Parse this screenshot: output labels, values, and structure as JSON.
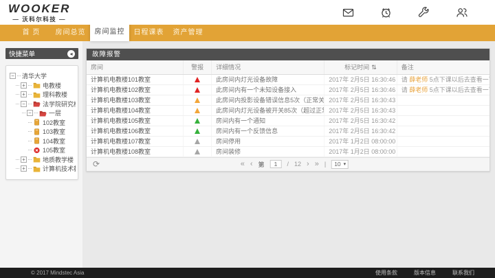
{
  "brand": {
    "logo": "WOOKER",
    "subtitle": "— 沃科尔科技 —"
  },
  "header": {
    "icons": [
      {
        "name": "mail-icon"
      },
      {
        "name": "alarm-icon"
      },
      {
        "name": "wrench-icon"
      },
      {
        "name": "users-icon"
      }
    ]
  },
  "nav": {
    "items": [
      {
        "label": "首 页",
        "active": false
      },
      {
        "label": "房间总览",
        "active": false
      },
      {
        "label": "房间监控",
        "active": true
      },
      {
        "label": "日程课表",
        "active": false
      },
      {
        "label": "资产管理",
        "active": false
      }
    ]
  },
  "sidebar": {
    "title": "快捷菜单",
    "collapse_icon": "◂",
    "tree": [
      {
        "label": "清华大学",
        "level": 0,
        "expander": "minus",
        "icon": "none"
      },
      {
        "label": "电教楼",
        "level": 1,
        "expander": "plus",
        "icon": "folder"
      },
      {
        "label": "理科教楼",
        "level": 1,
        "expander": "plus",
        "icon": "folder"
      },
      {
        "label": "法学院研究楼",
        "level": 1,
        "expander": "minus",
        "icon": "folder-open"
      },
      {
        "label": "一层",
        "level": 2,
        "expander": "minus",
        "icon": "folder-open"
      },
      {
        "label": "102教室",
        "level": 3,
        "expander": "none",
        "icon": "room"
      },
      {
        "label": "103教室",
        "level": 3,
        "expander": "none",
        "icon": "room"
      },
      {
        "label": "104教室",
        "level": 3,
        "expander": "none",
        "icon": "room"
      },
      {
        "label": "105教室",
        "level": 3,
        "expander": "none",
        "icon": "room-error"
      },
      {
        "label": "地质教学楼",
        "level": 1,
        "expander": "plus",
        "icon": "folder"
      },
      {
        "label": "计算机技术教室楼",
        "level": 1,
        "expander": "plus",
        "icon": "folder"
      }
    ],
    "expander_glyphs": {
      "plus": "+",
      "minus": "−"
    }
  },
  "panel": {
    "title": "故障报警",
    "columns": [
      {
        "label": "房间",
        "sortable": false
      },
      {
        "label": "警报",
        "sortable": false
      },
      {
        "label": "详细情况",
        "sortable": false
      },
      {
        "label": "标记时间",
        "sortable": true
      },
      {
        "label": "备注",
        "sortable": false
      }
    ],
    "rows": [
      {
        "room": "计算机电教楼101教室",
        "severity": "red",
        "detail": "此房间内灯光设备故障",
        "time": "2017年 2月5日 16:30:46",
        "note_prefix": "请 ",
        "note_name": "薛老师",
        "note_suffix": " 5点下课以后去查看一下"
      },
      {
        "room": "计算机电教楼102教室",
        "severity": "red",
        "detail": "此房间内有一个未知设备接入",
        "time": "2017年 2月5日 16:30:46",
        "note_prefix": "请 ",
        "note_name": "薛老师",
        "note_suffix": " 5点下课以后去查看一下"
      },
      {
        "room": "计算机电教楼103教室",
        "severity": "yellow",
        "detail": "此房间内投影设备错误信息5次（正常关闭）",
        "time": "2017年 2月5日 16:30:43",
        "note_prefix": "",
        "note_name": "",
        "note_suffix": ""
      },
      {
        "room": "计算机电教楼104教室",
        "severity": "yellow",
        "detail": "此房间内灯光设备被开关85次（超过正常值）",
        "time": "2017年 2月5日 16:30:43",
        "note_prefix": "",
        "note_name": "",
        "note_suffix": ""
      },
      {
        "room": "计算机电教楼105教室",
        "severity": "green",
        "detail": "房间内有一个通知",
        "time": "2017年 2月5日 16:30:42",
        "note_prefix": "",
        "note_name": "",
        "note_suffix": ""
      },
      {
        "room": "计算机电教楼106教室",
        "severity": "green",
        "detail": "房间内有一个反馈信息",
        "time": "2017年 2月5日 16:30:42",
        "note_prefix": "",
        "note_name": "",
        "note_suffix": ""
      },
      {
        "room": "计算机电教楼107教室",
        "severity": "gray",
        "detail": "房间停用",
        "time": "2017年 1月2日 08:00:00",
        "note_prefix": "",
        "note_name": "",
        "note_suffix": ""
      },
      {
        "room": "计算机电教楼108教室",
        "severity": "gray",
        "detail": "房间装修",
        "time": "2017年 1月2日 08:00:00",
        "note_prefix": "",
        "note_name": "",
        "note_suffix": ""
      }
    ],
    "severity_colors": {
      "red": "#e02424",
      "yellow": "#f2a63a",
      "green": "#36b13c",
      "gray": "#a6a6a6"
    },
    "pager": {
      "page_prefix": "第",
      "current_page": "1",
      "separator": "/",
      "total_pages": "12",
      "page_size": "10"
    },
    "icons": {
      "refresh": "⟳",
      "sort": "⇅",
      "first": "«",
      "prev": "‹",
      "next": "›",
      "last": "»",
      "divider": "|",
      "caret": "▾"
    }
  },
  "footer": {
    "copyright": "© 2017 Mindstec Asia",
    "links": [
      "使用条款",
      "版本信息",
      "联系我们"
    ]
  },
  "colors": {
    "accent": "#e2a336",
    "dark_bar": "#4f4f4f",
    "footer_bg": "#1d1d1d",
    "note_name": "#e8a33d"
  }
}
